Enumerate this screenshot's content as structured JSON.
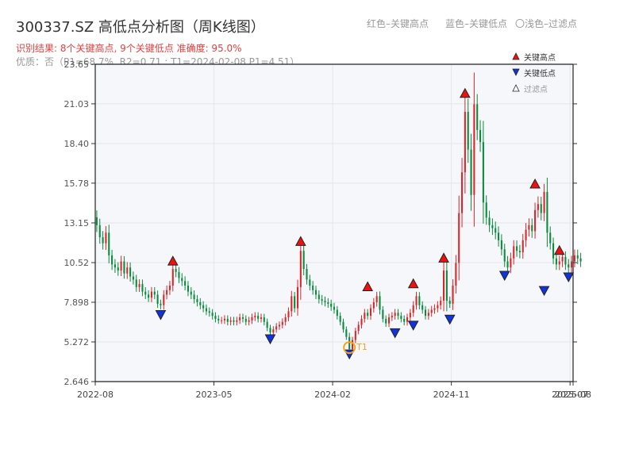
{
  "header": {
    "title": "300337.SZ 高低点分析图（周K线图）",
    "legend_red": "红色–关键高点",
    "legend_blue": "蓝色–关键低点",
    "legend_filtered": "〇浅色–过滤点",
    "result_line": "识别结果: 8个关键高点, 9个关键低点  准确度: 95.0%",
    "quality_line": "优质：否（P1=68.7%, R2=0.71 ; T1=2024-02-08 P1=4.51）"
  },
  "chart_data": {
    "type": "candlestick",
    "title": "300337.SZ 高低点分析图（周K线图）",
    "y_ticks": [
      "2.646",
      "5.272",
      "7.898",
      "10.52",
      "13.15",
      "15.78",
      "18.40",
      "21.03",
      "23.65"
    ],
    "y_range": [
      2.646,
      23.65
    ],
    "x_ticks": [
      {
        "label": "2022-08",
        "index": 0
      },
      {
        "label": "2023-05",
        "index": 39
      },
      {
        "label": "2024-02",
        "index": 78
      },
      {
        "label": "2024-11",
        "index": 117
      },
      {
        "label": "2025-07",
        "index": 156
      },
      {
        "label": "2025-08",
        "index": 157
      }
    ],
    "x_range": [
      0,
      157
    ],
    "grid": true,
    "legend_entries": [
      "关键高点",
      "关键低点",
      "过滤点"
    ],
    "legend_placement": "top-right",
    "colors": {
      "up": "#d9262a",
      "down": "#0a8a3c",
      "high_marker": "#ee1111",
      "low_marker": "#1133dd",
      "t1": "#f5a31a",
      "bg": "#f5f7fa"
    },
    "weekly_close": [
      13.0,
      12.2,
      11.8,
      12.5,
      11.0,
      10.4,
      10.2,
      10.0,
      10.6,
      9.8,
      10.2,
      9.6,
      9.4,
      8.9,
      9.1,
      8.6,
      8.4,
      8.2,
      8.6,
      8.4,
      7.8,
      7.7,
      8.4,
      8.7,
      9.0,
      10.1,
      9.9,
      9.5,
      9.3,
      9.0,
      8.6,
      8.4,
      8.1,
      7.9,
      7.7,
      7.5,
      7.3,
      7.2,
      7.0,
      6.8,
      6.7,
      6.7,
      6.8,
      6.6,
      6.7,
      6.6,
      6.7,
      6.9,
      6.8,
      6.6,
      6.7,
      6.9,
      7.0,
      6.8,
      6.9,
      6.6,
      6.2,
      5.9,
      6.1,
      6.3,
      6.4,
      6.6,
      6.9,
      7.3,
      8.3,
      7.5,
      8.9,
      11.3,
      10.1,
      9.4,
      9.0,
      8.7,
      8.4,
      8.1,
      8.0,
      7.9,
      7.8,
      7.6,
      7.4,
      7.0,
      6.6,
      6.1,
      5.6,
      4.8,
      5.4,
      6.0,
      6.4,
      6.8,
      7.2,
      7.0,
      7.5,
      7.9,
      8.3,
      7.4,
      6.8,
      6.5,
      6.9,
      7.0,
      7.2,
      7.0,
      6.8,
      6.6,
      6.9,
      7.2,
      7.7,
      8.3,
      7.7,
      7.4,
      7.0,
      7.2,
      7.4,
      7.5,
      7.7,
      8.0,
      10.0,
      8.0,
      7.8,
      9.0,
      10.5,
      13.8,
      16.5,
      20.5,
      18.0,
      15.0,
      21.0,
      19.3,
      18.5,
      14.5,
      13.5,
      13.0,
      12.8,
      12.5,
      12.0,
      11.4,
      10.6,
      10.2,
      10.8,
      11.6,
      11.3,
      11.2,
      12.0,
      12.7,
      13.0,
      12.6,
      14.0,
      14.4,
      13.8,
      15.2,
      12.5,
      11.8,
      10.8,
      10.4,
      10.6,
      10.9,
      10.4,
      10.2,
      10.6,
      11.0,
      10.8,
      10.6
    ],
    "key_highs": [
      {
        "index": 25,
        "value": 10.2
      },
      {
        "index": 67,
        "value": 11.5
      },
      {
        "index": 89,
        "value": 8.5
      },
      {
        "index": 104,
        "value": 8.7
      },
      {
        "index": 114,
        "value": 10.4
      },
      {
        "index": 121,
        "value": 21.3
      },
      {
        "index": 144,
        "value": 15.3
      },
      {
        "index": 152,
        "value": 10.9
      }
    ],
    "key_lows": [
      {
        "index": 21,
        "value": 7.5
      },
      {
        "index": 57,
        "value": 5.9
      },
      {
        "index": 83,
        "value": 4.9
      },
      {
        "index": 98,
        "value": 6.3
      },
      {
        "index": 104,
        "value": 6.8
      },
      {
        "index": 116,
        "value": 7.2
      },
      {
        "index": 134,
        "value": 10.1
      },
      {
        "index": 147,
        "value": 9.1
      },
      {
        "index": 155,
        "value": 10.0
      }
    ],
    "t1": {
      "label": "T1",
      "index": 83,
      "value": 4.9
    }
  }
}
